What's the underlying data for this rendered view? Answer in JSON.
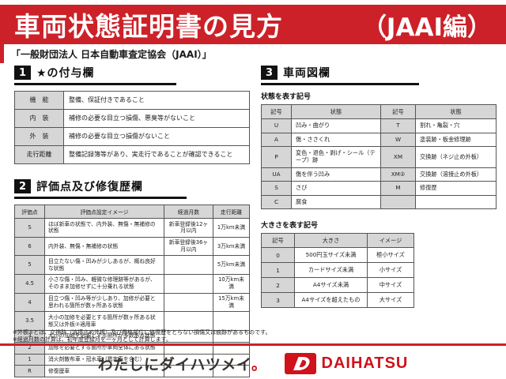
{
  "banner": {
    "title": "車両状態証明書の見方",
    "edition": "（JAAI編）"
  },
  "subtitle": "「一般財団法人 日本自動車査定協会（JAAI）」",
  "sections": {
    "star": {
      "number": "1",
      "title": "★の付与欄",
      "table": {
        "rows": [
          [
            "機　能",
            "整備、保証付きであること"
          ],
          [
            "内　装",
            "補修の必要な目立つ損傷、悪臭等がないこと"
          ],
          [
            "外　装",
            "補修の必要な目立つ損傷がないこと"
          ],
          [
            "走行距離",
            "整備記録簿等があり、実走行であることが確認できること"
          ]
        ]
      }
    },
    "rating": {
      "number": "2",
      "title": "評価点及び修復歴欄",
      "table": {
        "headers": [
          "評価点",
          "評価点設定イメージ",
          "経過月数",
          "走行距離"
        ],
        "rows": [
          [
            "S",
            "ほぼ新車の状態で、内外装、無傷・無補修の状態",
            "新車登録後12ヶ月以内",
            "1万km未満"
          ],
          [
            "6",
            "内外装、無傷・無補修の状態",
            "新車登録後36ヶ月以内",
            "3万km未満"
          ],
          [
            "5",
            "目立たない傷・凹みが少しあるが、概ね良好な状態",
            "",
            "5万km未満"
          ],
          [
            "4.5",
            "小さな傷・凹み、軽微な修理跡等があるが、そのまま加修せずに十分乗れる状態",
            "",
            "10万km未満"
          ],
          [
            "4",
            "目立つ傷・凹み等が少しあり、加修が必要と思われる箇所が数ヶ所ある状態",
            "",
            "15万km未満"
          ],
          [
            "3.5",
            "大小の加修を必要とする箇所が数ヶ所ある状態又は外板②適用車",
            "",
            ""
          ],
          [
            "3",
            "大小の加修を必要とする箇所が多数ある状態",
            "",
            ""
          ],
          [
            "2",
            "加修を必要とする箇所が車両全体にある状態",
            "",
            ""
          ],
          [
            "1",
            "消火剤散布車・冠水車（雹害車を含む）",
            "",
            ""
          ],
          [
            "R",
            "修復歴車",
            "",
            ""
          ]
        ]
      }
    },
    "diagram": {
      "number": "3",
      "title": "車両図欄",
      "state_label": "状態を表す記号",
      "state_table": {
        "headers": [
          "記号",
          "状態",
          "記号",
          "状態"
        ],
        "rows": [
          [
            "U",
            "凹み・曲がり",
            "T",
            "割れ・亀裂・穴"
          ],
          [
            "A",
            "傷・ささくれ",
            "W",
            "塗装跡・板金修理跡"
          ],
          [
            "P",
            "変色・退色・剥げ・シール（テープ）跡",
            "XM",
            "交換跡（ネジ止め外板）"
          ],
          [
            "UA",
            "傷を伴う凹み",
            "XM②",
            "交換跡（溶接止め外板）"
          ],
          [
            "S",
            "さび",
            "M",
            "修復歴"
          ],
          [
            "C",
            "腐食",
            "",
            ""
          ]
        ]
      },
      "size_label": "大きさを表す記号",
      "size_table": {
        "headers": [
          "記号",
          "大きさ",
          "イメージ"
        ],
        "rows": [
          [
            "0",
            "500円玉サイズ未満",
            "極小サイズ"
          ],
          [
            "1",
            "カードサイズ未満",
            "小サイズ"
          ],
          [
            "2",
            "A4サイズ未満",
            "中サイズ"
          ],
          [
            "3",
            "A4サイズを超えたもの",
            "大サイズ"
          ]
        ]
      }
    }
  },
  "notes": [
    "※外板②とは、交換跡（溶接止め外板）及び骨格部位に修復歴をとらない損傷又は痕跡があるものです。",
    "※経過月数の計算は、初年度登録月を一ヶ月として計算します。"
  ],
  "footer": {
    "slogan": "わたしにダイハツメイ。",
    "brand": "DAIHATSU"
  },
  "colors": {
    "banner_red": "#cc2129",
    "brand_red": "#d0121b",
    "cell_gray": "#d6d6d6",
    "section_black": "#111111"
  }
}
